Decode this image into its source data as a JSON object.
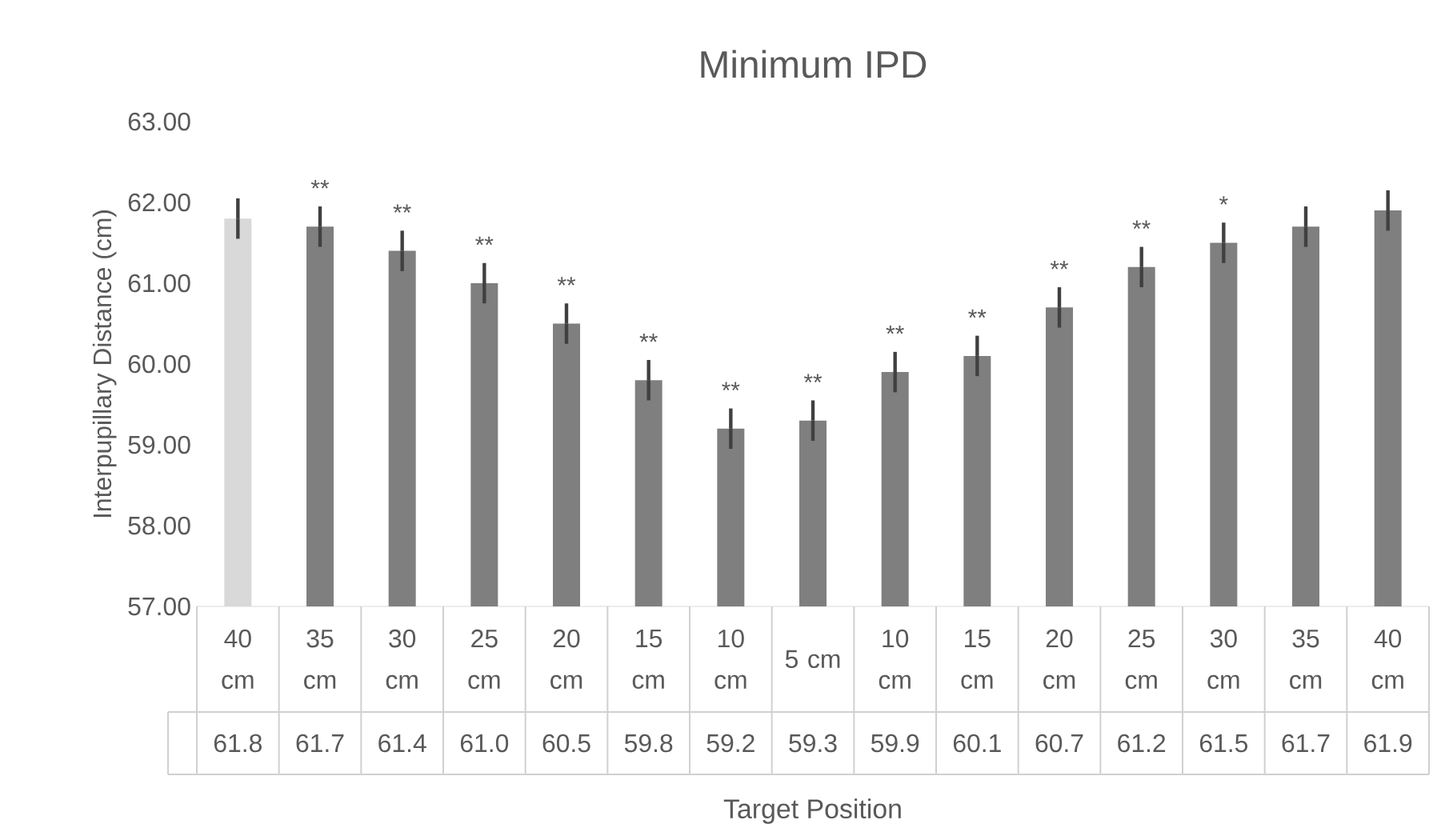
{
  "chart_data": {
    "type": "bar",
    "title": "Minimum IPD",
    "xlabel": "Target Position",
    "ylabel": "Interpupillary Distance (cm)",
    "categories": [
      "40 cm",
      "35 cm",
      "30 cm",
      "25 cm",
      "20 cm",
      "15 cm",
      "10 cm",
      "5 cm",
      "10 cm",
      "15 cm",
      "20 cm",
      "25 cm",
      "30 cm",
      "35 cm",
      "40 cm"
    ],
    "values": [
      61.8,
      61.7,
      61.4,
      61.0,
      60.5,
      59.8,
      59.2,
      59.3,
      59.9,
      60.1,
      60.7,
      61.2,
      61.5,
      61.7,
      61.9
    ],
    "errors": [
      0.25,
      0.25,
      0.25,
      0.25,
      0.25,
      0.25,
      0.25,
      0.25,
      0.25,
      0.25,
      0.25,
      0.25,
      0.25,
      0.25,
      0.25
    ],
    "colors": [
      "#d9d9d9",
      "#7f7f7f",
      "#7f7f7f",
      "#7f7f7f",
      "#7f7f7f",
      "#7f7f7f",
      "#7f7f7f",
      "#7f7f7f",
      "#7f7f7f",
      "#7f7f7f",
      "#7f7f7f",
      "#7f7f7f",
      "#7f7f7f",
      "#7f7f7f",
      "#7f7f7f"
    ],
    "value_labels": [
      "61.8",
      "61.7",
      "61.4",
      "61.0",
      "60.5",
      "59.8",
      "59.2",
      "59.3",
      "59.9",
      "60.1",
      "60.7",
      "61.2",
      "61.5",
      "61.7",
      "61.9"
    ],
    "ylim": [
      57,
      63
    ],
    "yticks": [
      {
        "value": 57,
        "label": "57.00"
      },
      {
        "value": 58,
        "label": "58.00"
      },
      {
        "value": 59,
        "label": "59.00"
      },
      {
        "value": 60,
        "label": "60.00"
      },
      {
        "value": 61,
        "label": "61.00"
      },
      {
        "value": 62,
        "label": "62.00"
      },
      {
        "value": 63,
        "label": "63.00"
      }
    ],
    "annotations": [
      "**",
      "**",
      "**",
      "**",
      "**",
      "**",
      "**",
      "**",
      "**",
      "**",
      "**",
      "*"
    ]
  }
}
